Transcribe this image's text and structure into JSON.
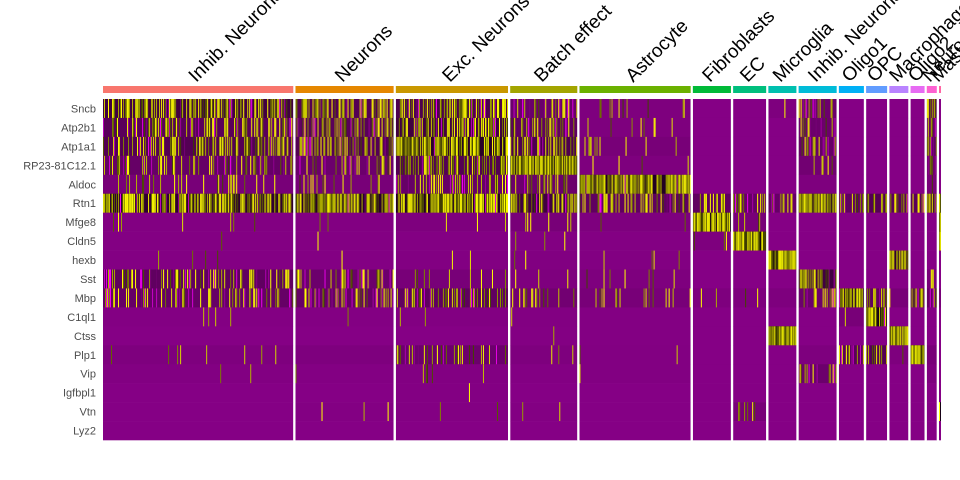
{
  "chart_data": {
    "type": "heatmap",
    "title": "",
    "xlabel": "",
    "ylabel": "",
    "genes": [
      "Sncb",
      "Atp2b1",
      "Atp1a1",
      "RP23-81C12.1",
      "Aldoc",
      "Rtn1",
      "Mfge8",
      "Cldn5",
      "hexb",
      "Sst",
      "Mbp",
      "C1ql1",
      "Ctss",
      "Plp1",
      "Vip",
      "Igfbpl1",
      "Vtn",
      "Lyz2"
    ],
    "clusters": [
      {
        "name": "Inhib. Neurons",
        "cells": 190,
        "color": "#F8766D"
      },
      {
        "name": "Neurons",
        "cells": 98,
        "color": "#E58700"
      },
      {
        "name": "Exc. Neurons",
        "cells": 112,
        "color": "#C99800"
      },
      {
        "name": "Batch effect",
        "cells": 67,
        "color": "#A3A500"
      },
      {
        "name": "Astrocyte",
        "cells": 111,
        "color": "#6BB100"
      },
      {
        "name": "Fibroblasts",
        "cells": 38,
        "color": "#00BA38"
      },
      {
        "name": "EC",
        "cells": 33,
        "color": "#00BF7D"
      },
      {
        "name": "Microglia",
        "cells": 28,
        "color": "#00C0AF"
      },
      {
        "name": "Inhib. Neurons",
        "cells": 38,
        "color": "#00BCD8"
      },
      {
        "name": "Oligo1",
        "cells": 25,
        "color": "#00B0F6"
      },
      {
        "name": "OPC",
        "cells": 21,
        "color": "#619CFF"
      },
      {
        "name": "Macrophages",
        "cells": 19,
        "color": "#B983FF"
      },
      {
        "name": "Oligo2",
        "cells": 14,
        "color": "#E76BF3"
      },
      {
        "name": "Neuron",
        "cells": 10,
        "color": "#FD61D1"
      },
      {
        "name": "Mast",
        "cells": 2,
        "color": "#FF67A4"
      }
    ],
    "mean_expression": [
      [
        0.55,
        0.4,
        0.45,
        0.22,
        0.05,
        0.0,
        0.0,
        0.05,
        0.2,
        0.0,
        0.0,
        0.0,
        0.0,
        0.4,
        0.0
      ],
      [
        0.35,
        0.35,
        0.55,
        0.3,
        0.05,
        0.0,
        0.0,
        0.0,
        0.2,
        0.0,
        0.0,
        0.0,
        0.0,
        0.25,
        0.0
      ],
      [
        0.4,
        0.4,
        0.75,
        0.45,
        0.1,
        0.0,
        0.0,
        0.0,
        0.25,
        0.0,
        0.0,
        0.0,
        0.0,
        0.3,
        0.0
      ],
      [
        0.25,
        0.2,
        0.4,
        0.9,
        0.05,
        0.0,
        0.0,
        0.0,
        0.15,
        0.0,
        0.0,
        0.0,
        0.0,
        0.2,
        0.0
      ],
      [
        0.1,
        0.1,
        0.25,
        0.2,
        0.8,
        0.0,
        0.0,
        0.0,
        0.05,
        0.0,
        0.0,
        0.0,
        0.0,
        0.1,
        0.0
      ],
      [
        0.7,
        0.75,
        0.8,
        0.55,
        0.3,
        0.3,
        0.25,
        0.25,
        0.75,
        0.3,
        0.4,
        0.35,
        0.35,
        0.6,
        0.3
      ],
      [
        0.02,
        0.02,
        0.05,
        0.1,
        0.05,
        0.9,
        0.1,
        0.0,
        0.0,
        0.0,
        0.0,
        0.0,
        0.0,
        0.0,
        0.95
      ],
      [
        0.01,
        0.01,
        0.01,
        0.02,
        0.01,
        0.05,
        0.95,
        0.0,
        0.0,
        0.0,
        0.0,
        0.0,
        0.0,
        0.0,
        0.6
      ],
      [
        0.01,
        0.01,
        0.02,
        0.03,
        0.02,
        0.0,
        0.0,
        0.95,
        0.0,
        0.0,
        0.0,
        0.7,
        0.0,
        0.0,
        0.0
      ],
      [
        0.3,
        0.2,
        0.1,
        0.05,
        0.05,
        0.0,
        0.0,
        0.0,
        0.55,
        0.0,
        0.0,
        0.0,
        0.0,
        0.1,
        0.0
      ],
      [
        0.25,
        0.25,
        0.3,
        0.15,
        0.1,
        0.05,
        0.05,
        0.05,
        0.2,
        0.75,
        0.3,
        0.1,
        0.4,
        0.25,
        0.1
      ],
      [
        0.01,
        0.01,
        0.02,
        0.02,
        0.01,
        0.0,
        0.0,
        0.0,
        0.0,
        0.1,
        0.9,
        0.0,
        0.0,
        0.0,
        0.0
      ],
      [
        0.0,
        0.0,
        0.0,
        0.01,
        0.01,
        0.0,
        0.0,
        0.95,
        0.0,
        0.0,
        0.0,
        0.75,
        0.0,
        0.0,
        0.0
      ],
      [
        0.05,
        0.05,
        0.2,
        0.05,
        0.02,
        0.0,
        0.0,
        0.0,
        0.05,
        0.35,
        0.4,
        0.05,
        0.95,
        0.1,
        0.0
      ],
      [
        0.02,
        0.01,
        0.02,
        0.01,
        0.02,
        0.0,
        0.0,
        0.0,
        0.2,
        0.0,
        0.0,
        0.0,
        0.0,
        0.05,
        0.0
      ],
      [
        0.0,
        0.0,
        0.01,
        0.0,
        0.0,
        0.0,
        0.0,
        0.0,
        0.0,
        0.0,
        0.0,
        0.0,
        0.0,
        0.0,
        0.0
      ],
      [
        0.0,
        0.01,
        0.01,
        0.01,
        0.0,
        0.0,
        0.1,
        0.0,
        0.0,
        0.0,
        0.0,
        0.0,
        0.0,
        0.0,
        0.9
      ],
      [
        0.0,
        0.0,
        0.0,
        0.0,
        0.0,
        0.0,
        0.0,
        0.0,
        0.0,
        0.0,
        0.0,
        0.0,
        0.0,
        0.0,
        0.0
      ]
    ],
    "color_scale": {
      "low": "#FF00FF",
      "mid": "#000000",
      "high": "#FFFF00",
      "typical_background": "#7E007E"
    },
    "legend": "none",
    "grid": false
  }
}
